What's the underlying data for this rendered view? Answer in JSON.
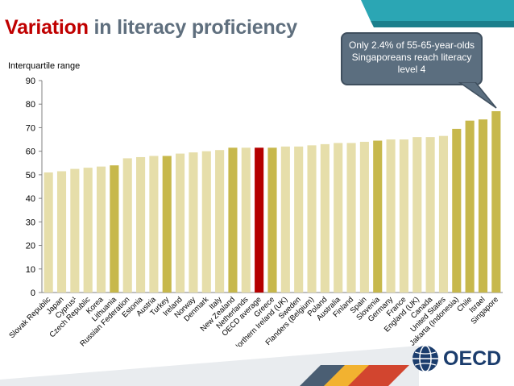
{
  "title": {
    "highlight": "Variation",
    "rest": "in literacy proficiency"
  },
  "callout": {
    "text": "Only 2.4% of 55-65-year-olds Singaporeans reach literacy level 4"
  },
  "logo": {
    "text": "OECD"
  },
  "colors": {
    "default_bar": "#e6deaa",
    "highlight_bar": "#c7b84c",
    "oecd_average_bar": "#b40000",
    "title_highlight": "#c00000",
    "title_rest": "#5f6f7e",
    "callout_bg": "#5b6e7f"
  },
  "chart_data": {
    "type": "bar",
    "title": "",
    "ylabel": "Interquartile range",
    "xlabel": "",
    "ylim": [
      0,
      90
    ],
    "yticks": [
      0,
      10,
      20,
      30,
      40,
      50,
      60,
      70,
      80,
      90
    ],
    "grid": false,
    "legend": "none",
    "categories": [
      "Slovak Republic",
      "Japan",
      "Cyprus¹",
      "Czech Republic",
      "Korea",
      "Lithuania",
      "Russian Federation",
      "Estonia",
      "Austria",
      "Turkey",
      "Ireland",
      "Norway",
      "Denmark",
      "Italy",
      "New Zealand",
      "Netherlands",
      "OECD average",
      "Greece",
      "Northern Ireland (UK)",
      "Sweden",
      "Flanders (Belgium)",
      "Poland",
      "Australia",
      "Finland",
      "Spain",
      "Slovenia",
      "Germany",
      "France",
      "England (UK)",
      "Canada",
      "United States",
      "Jakarta (Indonesia)",
      "Chile",
      "Israel",
      "Singapore"
    ],
    "values": [
      51,
      51.5,
      52.5,
      53,
      53.5,
      54,
      57,
      57.5,
      58,
      58,
      59,
      59.5,
      60,
      60.5,
      61.5,
      61.5,
      61.5,
      61.5,
      62,
      62,
      62.5,
      63,
      63.5,
      63.5,
      64,
      64.5,
      65,
      65,
      66,
      66,
      66.5,
      69.5,
      73,
      73.5,
      77
    ],
    "highlighted": [
      "Lithuania",
      "Turkey",
      "New Zealand",
      "Greece",
      "Slovenia",
      "Jakarta (Indonesia)",
      "Chile",
      "Israel",
      "Singapore"
    ],
    "average_category": "OECD average"
  }
}
